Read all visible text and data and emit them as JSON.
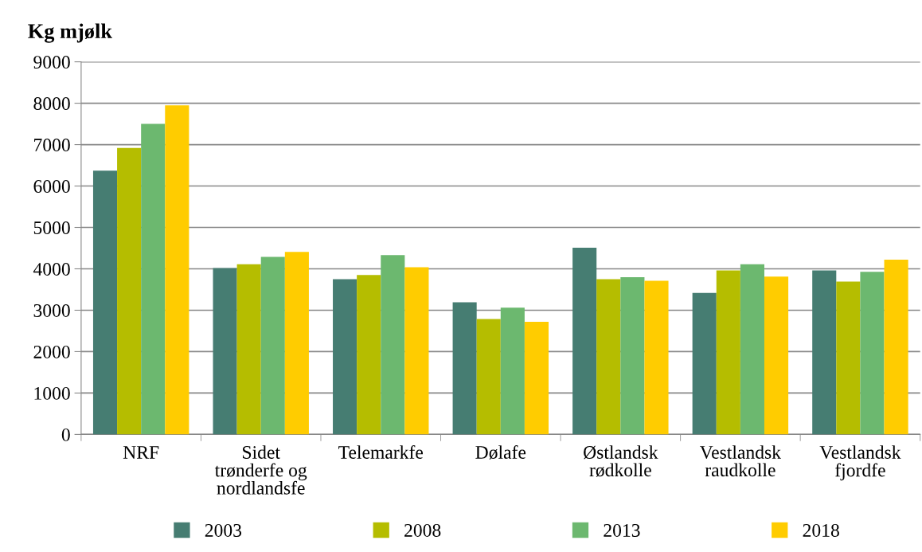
{
  "chart_data": {
    "type": "bar",
    "title": "Kg mjølk",
    "categories": [
      "NRF",
      "Sidet\ntrønderfe og\nnordlandsfe",
      "Telemarkfe",
      "Dølafe",
      "Østlandsk\nrødkolle",
      "Vestlandsk\nraudkolle",
      "Vestlandsk\nfjordfe"
    ],
    "series": [
      {
        "name": "2003",
        "color": "#467d72",
        "values": [
          6370,
          4020,
          3750,
          3190,
          4510,
          3420,
          3960
        ]
      },
      {
        "name": "2008",
        "color": "#b5bd00",
        "values": [
          6920,
          4110,
          3850,
          2790,
          3750,
          3960,
          3690
        ]
      },
      {
        "name": "2013",
        "color": "#6cb86f",
        "values": [
          7500,
          4290,
          4330,
          3060,
          3800,
          4110,
          3930
        ]
      },
      {
        "name": "2018",
        "color": "#ffcc00",
        "values": [
          7950,
          4410,
          4040,
          2720,
          3710,
          3810,
          4220
        ]
      }
    ],
    "ylim": [
      0,
      9000
    ],
    "yticks": [
      0,
      1000,
      2000,
      3000,
      4000,
      5000,
      6000,
      7000,
      8000,
      9000
    ],
    "grid": "y",
    "legend": "bottom"
  }
}
